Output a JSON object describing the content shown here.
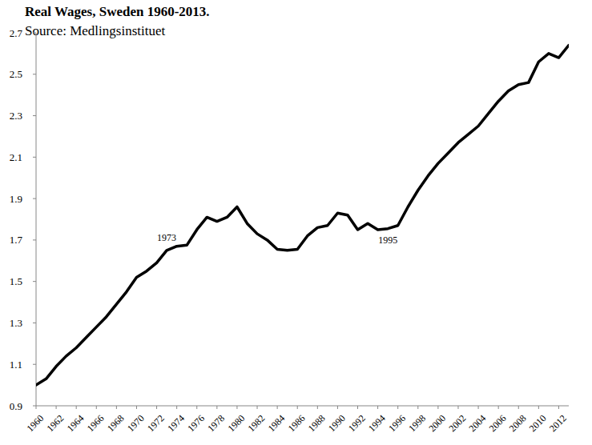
{
  "chart_data": {
    "type": "line",
    "title": "Real Wages, Sweden 1960-2013.",
    "subtitle": "Source: Medlingsinstituet",
    "x": [
      1960,
      1961,
      1962,
      1963,
      1964,
      1965,
      1966,
      1967,
      1968,
      1969,
      1970,
      1971,
      1972,
      1973,
      1974,
      1975,
      1976,
      1977,
      1978,
      1979,
      1980,
      1981,
      1982,
      1983,
      1984,
      1985,
      1986,
      1987,
      1988,
      1989,
      1990,
      1991,
      1992,
      1993,
      1994,
      1995,
      1996,
      1997,
      1998,
      1999,
      2000,
      2001,
      2002,
      2003,
      2004,
      2005,
      2006,
      2007,
      2008,
      2009,
      2010,
      2011,
      2012,
      2013
    ],
    "values": [
      1.0,
      1.03,
      1.09,
      1.14,
      1.18,
      1.23,
      1.28,
      1.33,
      1.39,
      1.45,
      1.52,
      1.55,
      1.59,
      1.65,
      1.67,
      1.675,
      1.75,
      1.81,
      1.79,
      1.81,
      1.86,
      1.78,
      1.73,
      1.7,
      1.655,
      1.65,
      1.655,
      1.72,
      1.76,
      1.77,
      1.83,
      1.82,
      1.75,
      1.78,
      1.75,
      1.755,
      1.77,
      1.86,
      1.94,
      2.01,
      2.07,
      2.12,
      2.17,
      2.21,
      2.25,
      2.31,
      2.37,
      2.42,
      2.45,
      2.46,
      2.56,
      2.6,
      2.58,
      2.64
    ],
    "color": "#000000",
    "xlim": [
      1960,
      2013
    ],
    "xticks": [
      1960,
      1962,
      1964,
      1966,
      1968,
      1970,
      1972,
      1974,
      1976,
      1978,
      1980,
      1982,
      1984,
      1986,
      1988,
      1990,
      1992,
      1994,
      1996,
      1998,
      2000,
      2002,
      2004,
      2006,
      2008,
      2010,
      2012
    ],
    "ylim": [
      0.9,
      2.7
    ],
    "yticks": [
      0.9,
      1.1,
      1.3,
      1.5,
      1.7,
      1.9,
      2.1,
      2.3,
      2.5,
      2.7
    ],
    "grid": false,
    "annotations": [
      {
        "text": "1973",
        "x": 1973
      },
      {
        "text": "1995",
        "x": 1995
      }
    ]
  }
}
